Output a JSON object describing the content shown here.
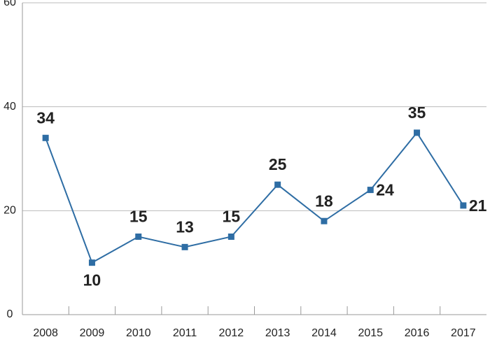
{
  "chart_data": {
    "type": "line",
    "categories": [
      "2008",
      "2009",
      "2010",
      "2011",
      "2012",
      "2013",
      "2014",
      "2015",
      "2016",
      "2017"
    ],
    "values": [
      34,
      10,
      15,
      13,
      15,
      25,
      18,
      24,
      35,
      21
    ],
    "color": "#2e6da4",
    "ylim": [
      0,
      60
    ],
    "yticks": [
      0,
      20,
      40,
      60
    ],
    "grid": true
  }
}
